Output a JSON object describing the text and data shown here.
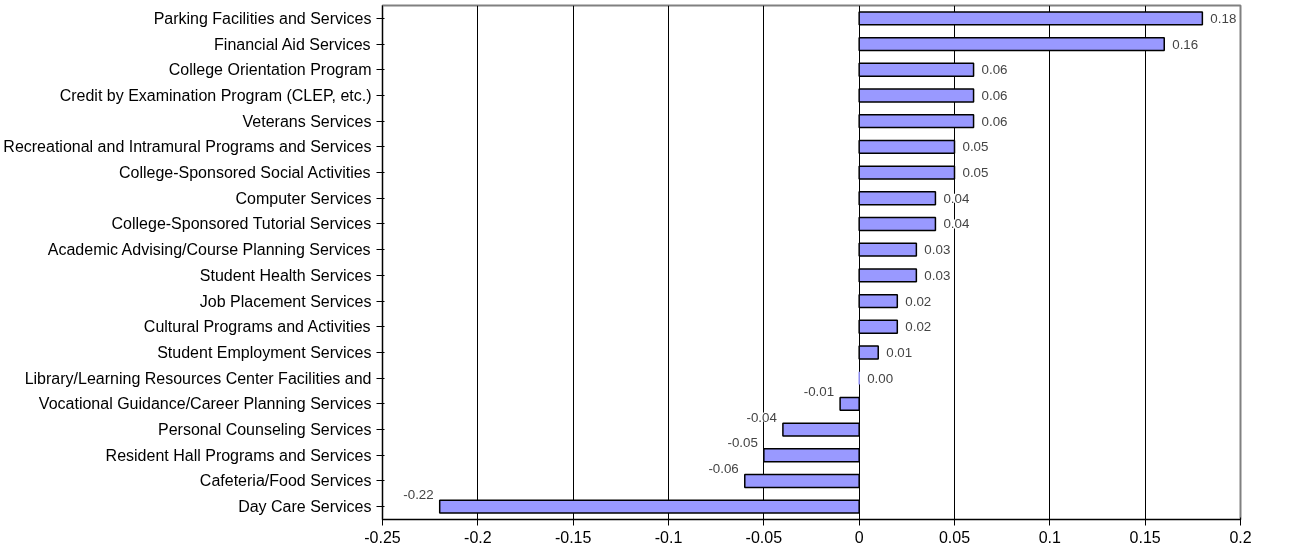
{
  "chart_data": {
    "type": "bar",
    "orientation": "horizontal",
    "categories": [
      "Parking Facilities and Services",
      "Financial Aid Services",
      "College Orientation Program",
      "Credit by Examination Program (CLEP, etc.)",
      "Veterans Services",
      "Recreational and Intramural Programs and Services",
      "College-Sponsored Social Activities",
      "Computer Services",
      "College-Sponsored Tutorial Services",
      "Academic Advising/Course Planning Services",
      "Student Health Services",
      "Job Placement Services",
      "Cultural Programs and Activities",
      "Student Employment Services",
      "Library/Learning Resources Center Facilities and",
      "Vocational Guidance/Career Planning Services",
      "Personal Counseling Services",
      "Resident Hall Programs and Services",
      "Cafeteria/Food Services",
      "Day Care Services"
    ],
    "values": [
      0.18,
      0.16,
      0.06,
      0.06,
      0.06,
      0.05,
      0.05,
      0.04,
      0.04,
      0.03,
      0.03,
      0.02,
      0.02,
      0.01,
      0.0,
      -0.01,
      -0.04,
      -0.05,
      -0.06,
      -0.22
    ],
    "value_labels": [
      "0.18",
      "0.16",
      "0.06",
      "0.06",
      "0.06",
      "0.05",
      "0.05",
      "0.04",
      "0.04",
      "0.03",
      "0.03",
      "0.02",
      "0.02",
      "0.01",
      "0.00",
      "-0.01",
      "-0.04",
      "-0.05",
      "-0.06",
      "-0.22"
    ],
    "color": "#9999ff",
    "xlim": [
      -0.25,
      0.2
    ],
    "xticks": [
      -0.25,
      -0.2,
      -0.15,
      -0.1,
      -0.05,
      0,
      0.05,
      0.1,
      0.15,
      0.2
    ],
    "grid": "x"
  }
}
